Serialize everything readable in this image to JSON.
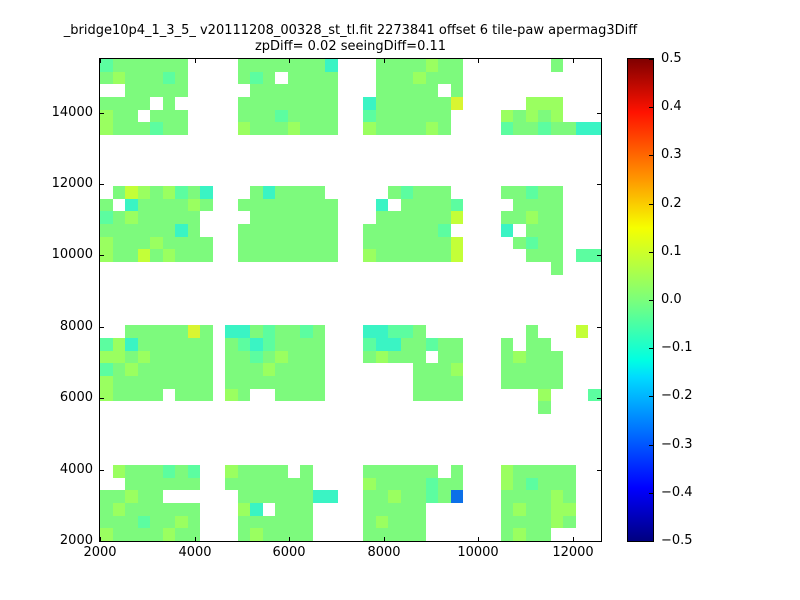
{
  "figure": {
    "background": "#ffffff"
  },
  "chart_data": {
    "type": "heatmap",
    "title": "_bridge10p4_1_3_5_ v20111208_00328_st_tl.fit 2273841 offset 6 tile-paw apermag3Diff",
    "subtitle": "zpDiff= 0.02 seeingDiff=0.11",
    "x_axis": {
      "range": [
        2000,
        12600
      ],
      "tick_values": [
        2000,
        4000,
        6000,
        8000,
        10000,
        12000
      ],
      "tick_labels": [
        "2000",
        "4000",
        "6000",
        "8000",
        "10000",
        "12000"
      ]
    },
    "y_axis": {
      "range": [
        2000,
        15500
      ],
      "tick_values": [
        2000,
        4000,
        6000,
        8000,
        10000,
        12000,
        14000
      ],
      "tick_labels": [
        "2000",
        "4000",
        "6000",
        "8000",
        "10000",
        "12000",
        "14000"
      ]
    },
    "colorbar": {
      "colormap": "jet",
      "vmin": -0.5,
      "vmax": 0.5,
      "tick_values": [
        0.5,
        0.4,
        0.3,
        0.2,
        0.1,
        0.0,
        -0.1,
        -0.2,
        -0.3,
        -0.4,
        -0.5
      ],
      "tick_labels": [
        "0.5",
        "0.4",
        "0.3",
        "0.2",
        "0.1",
        "0.0",
        "−0.1",
        "−0.2",
        "−0.3",
        "−0.4",
        "−0.5"
      ],
      "gradient": [
        [
          0.0,
          "#000080"
        ],
        [
          0.11,
          "#0000ff"
        ],
        [
          0.34,
          "#00dbff"
        ],
        [
          0.375,
          "#00ffe2"
        ],
        [
          0.5,
          "#7bff7b"
        ],
        [
          0.65,
          "#f6ff00"
        ],
        [
          0.76,
          "#ff8e00"
        ],
        [
          0.89,
          "#ff1200"
        ],
        [
          1.0,
          "#800000"
        ]
      ]
    },
    "palette": {
      "a": {
        "value": 0.0,
        "color": "#7dfa7d"
      },
      "b": {
        "value": 0.05,
        "color": "#9aff60"
      },
      "c": {
        "value": 0.1,
        "color": "#c3ff38"
      },
      "d": {
        "value": 0.15,
        "color": "#d9f531"
      },
      "e": {
        "value": -0.04,
        "color": "#5cfda0"
      },
      "f": {
        "value": -0.09,
        "color": "#3af4c4"
      },
      "B": {
        "value": -0.28,
        "color": "#0c70e8"
      }
    },
    "grid": {
      "ncols": 40,
      "nrows": 38,
      "legend": "each string is one row top-to-bottom; '.'=no data; letters index palette apermag3Diff values",
      "rows": [
        "eaaaaaa....aaaaaaaf...aaaabaa.......a...",
        "abaaaea....aea.aaaa...aaabaaa...........",
        "..aaaaa.....aaaaaaa...aaaaa.a...........",
        "aaaa.a.....aaaaaaaa..faaaaaad.....bbb...",
        "baa.aaa....aaaeaaaa..eaaaaaa....babab...",
        "baaaeaa....baaabaaa..baaaaba....eaaeaaff",
        "........................................",
        "........................................",
        "........................................",
        "........................................",
        ".acbabeaf...afaaaa.....aeaaa....aaeaa...",
        "a.faaaaba..aaaaaaaa...f.aaaae....aaaa...",
        "eabaaaaa....aaaaaaa...aaaaaac...aabaa...",
        "aaaaaafa...aaaaaaaa..aaaaaae....f.aaa...",
        "baaabaaaa..aaaaaaaa..aaaaaaac....aeaa...",
        "baacabaaa..aaaaaaaa..baaaaaac.....aaa.ee",
        "....................................a...",
        "........................................",
        "........................................",
        "........................................",
        "........................................",
        "..aaaaada.ffaeaaea...ffeea........a...c.",
        "ebfaaaaaa.aefeaaaa...effaaeaa...a.aa....",
        "bbabaaaaa.aaeabaaa...abaaa.aa...abaaa...",
        "eabaaaaaa.aaabaaaa.......aaab...aaaaa...",
        "baaaaaaaa.aaaaaaaa.......aaaa...aaaaa...",
        "baaaa.aaa.ba..aaaa.......aaaa......b...e",
        "...................................a....",
        "........................................",
        "........................................",
        "........................................",
        "........................................",
        ".baaaeae..baaaa.a....aaaaaa.a...baaaaa..",
        "..aaaaaa..aaaaaaa....baaaaeaa...baeaaa..",
        "aabaa......aaaaaaff..aabaaeaB...aaaaba..",
        "abaaaaaa...bf.aaa....aaaaa......abaabb..",
        "aaaeaaba...aaaaaa....abaaa......aaaaba..",
        "baaaabaa...abaaaa....aaaaa......abaa...."
      ]
    }
  }
}
